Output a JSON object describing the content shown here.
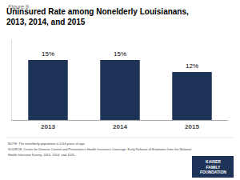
{
  "chart_data": {
    "type": "bar",
    "title": "Uninsured Rate among Nonelderly Louisianans,\n2013, 2014, and 2015",
    "categories": [
      "2013",
      "2014",
      "2015"
    ],
    "values": [
      15,
      15,
      12
    ],
    "value_labels": [
      "15%",
      "15%",
      "12%"
    ],
    "color": "#1e3358",
    "ylim": [
      0,
      20
    ],
    "data_labels": true,
    "tick_labels": "x",
    "grid": false,
    "annotations": [
      "Figure 9",
      "NOTE: The nonelderly population is 0-64 years of age.",
      "SOURCE: Center for Disease Control and Prevention’s Health Insurance Coverage: Early Release of Estimates from the National",
      "Health Interview Survey, 2013, 2014, and 2015.",
      "KAISER\nFAMILY\nFOUNDATION"
    ]
  }
}
